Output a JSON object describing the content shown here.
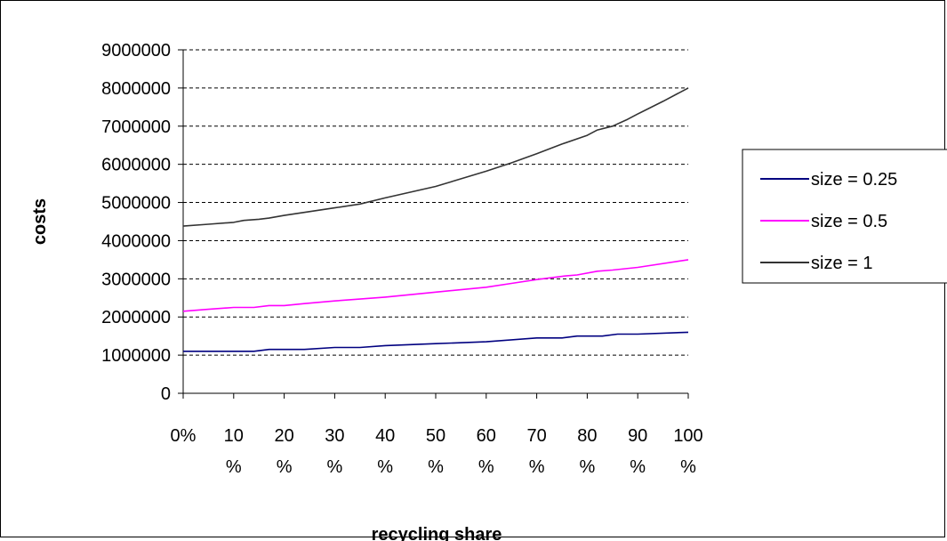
{
  "chart_data": {
    "type": "line",
    "xlabel": "recycling share",
    "ylabel": "costs",
    "ylim": [
      0,
      9000000
    ],
    "xlim": [
      0,
      100
    ],
    "y_ticks": [
      "0",
      "1000000",
      "2000000",
      "3000000",
      "4000000",
      "5000000",
      "6000000",
      "7000000",
      "8000000",
      "9000000"
    ],
    "x_ticks": [
      {
        "line1": "0%",
        "line2": ""
      },
      {
        "line1": "10",
        "line2": "%"
      },
      {
        "line1": "20",
        "line2": "%"
      },
      {
        "line1": "30",
        "line2": "%"
      },
      {
        "line1": "40",
        "line2": "%"
      },
      {
        "line1": "50",
        "line2": "%"
      },
      {
        "line1": "60",
        "line2": "%"
      },
      {
        "line1": "70",
        "line2": "%"
      },
      {
        "line1": "80",
        "line2": "%"
      },
      {
        "line1": "90",
        "line2": "%"
      },
      {
        "line1": "100",
        "line2": "%"
      }
    ],
    "grid": true,
    "legend_position": "right",
    "series": [
      {
        "name": "size = 0.25",
        "color": "#000080",
        "x": [
          0,
          5,
          10,
          14,
          17,
          20,
          24,
          30,
          35,
          40,
          50,
          60,
          70,
          75,
          78,
          83,
          86,
          90,
          100
        ],
        "values": [
          1100000,
          1100000,
          1100000,
          1100000,
          1150000,
          1150000,
          1150000,
          1200000,
          1200000,
          1250000,
          1300000,
          1350000,
          1450000,
          1450000,
          1500000,
          1500000,
          1550000,
          1550000,
          1600000
        ]
      },
      {
        "name": "size = 0.5",
        "color": "#FF00FF",
        "x": [
          0,
          5,
          10,
          14,
          17,
          20,
          24,
          30,
          35,
          40,
          50,
          60,
          65,
          70,
          76,
          78,
          82,
          85,
          90,
          100
        ],
        "values": [
          2150000,
          2200000,
          2250000,
          2250000,
          2300000,
          2300000,
          2350000,
          2420000,
          2470000,
          2520000,
          2650000,
          2780000,
          2880000,
          2980000,
          3080000,
          3100000,
          3200000,
          3230000,
          3300000,
          3500000
        ]
      },
      {
        "name": "size = 1",
        "color": "#333333",
        "x": [
          0,
          5,
          10,
          12,
          15,
          17,
          20,
          25,
          30,
          35,
          40,
          50,
          60,
          65,
          70,
          75,
          80,
          82,
          85,
          88,
          90,
          95,
          100
        ],
        "values": [
          4380000,
          4430000,
          4480000,
          4530000,
          4560000,
          4590000,
          4660000,
          4760000,
          4860000,
          4960000,
          5120000,
          5420000,
          5820000,
          6040000,
          6280000,
          6530000,
          6760000,
          6900000,
          7000000,
          7180000,
          7320000,
          7650000,
          8000000
        ]
      }
    ]
  }
}
